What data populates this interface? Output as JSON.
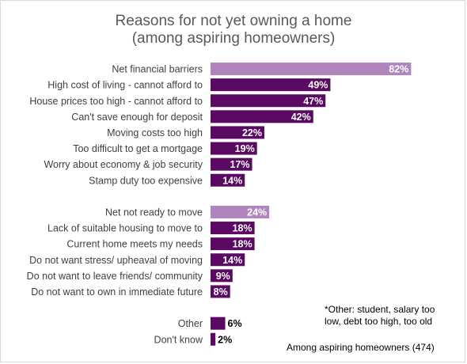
{
  "chart_data": {
    "type": "bar",
    "orientation": "horizontal",
    "title": "Reasons for not yet owning a home\n(among aspiring homeowners)",
    "categories": [
      "Net financial barriers",
      "High cost of living - cannot afford to",
      "House prices too high - cannot afford to",
      "Can't save enough for deposit",
      "Moving costs too high",
      "Too difficult to get a mortgage",
      "Worry about economy & job security",
      "Stamp duty too expensive",
      "",
      "Net not ready to move",
      "Lack of suitable housing to move to",
      "Current home meets my needs",
      "Do not want stress/ upheaval of moving",
      "Do not want to leave friends/ community",
      "Do not want to own in immediate future",
      "",
      "Other",
      "Don't know"
    ],
    "values": [
      82,
      49,
      47,
      42,
      22,
      19,
      17,
      14,
      null,
      24,
      18,
      18,
      14,
      9,
      8,
      null,
      6,
      2
    ],
    "data_labels": [
      "82%",
      "49%",
      "47%",
      "42%",
      "22%",
      "19%",
      "17%",
      "14%",
      "",
      "24%",
      "18%",
      "18%",
      "14%",
      "9%",
      "8%",
      "",
      "6%",
      "2%"
    ],
    "is_net": [
      true,
      false,
      false,
      false,
      false,
      false,
      false,
      false,
      false,
      true,
      false,
      false,
      false,
      false,
      false,
      false,
      false,
      false
    ],
    "xlim": [
      0,
      100
    ],
    "unit": "%",
    "grid": false,
    "colors": {
      "bar": "#5b0a63",
      "net_bar": "#b085bd",
      "label_inside": "#ffffff",
      "label_outside": "#000000",
      "category_text": "#404040"
    }
  },
  "footnotes": {
    "other_note": "*Other: student, salary too\nlow, debt too high, too old",
    "base": "Among aspiring homeowners (474)"
  }
}
